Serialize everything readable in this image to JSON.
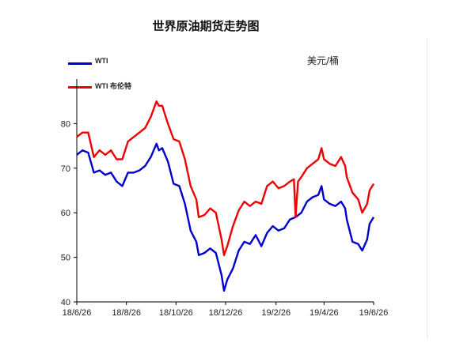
{
  "chart_data": {
    "type": "line",
    "title": "世界原油期货走势图",
    "unit": "美元/桶",
    "xlabel": "",
    "ylabel": "",
    "x_ticks": [
      "18/6/26",
      "18/8/26",
      "18/10/26",
      "18/12/26",
      "19/2/26",
      "19/4/26",
      "19/6/26"
    ],
    "y_ticks": [
      40,
      50,
      60,
      70,
      80
    ],
    "ylim": [
      40,
      90
    ],
    "grid": false,
    "legend_position": "top-left",
    "series": [
      {
        "name": "WTI",
        "color": "#0000cc",
        "points": [
          [
            "18/6/26",
            73
          ],
          [
            "18/7/3",
            74
          ],
          [
            "18/7/10",
            73.5
          ],
          [
            "18/7/17",
            69
          ],
          [
            "18/7/24",
            69.5
          ],
          [
            "18/7/31",
            68.5
          ],
          [
            "18/8/7",
            69
          ],
          [
            "18/8/14",
            67
          ],
          [
            "18/8/21",
            66
          ],
          [
            "18/8/28",
            69
          ],
          [
            "18/9/4",
            69
          ],
          [
            "18/9/11",
            69.5
          ],
          [
            "18/9/18",
            70.5
          ],
          [
            "18/9/25",
            72.5
          ],
          [
            "18/10/2",
            75.5
          ],
          [
            "18/10/5",
            74
          ],
          [
            "18/10/9",
            74.5
          ],
          [
            "18/10/16",
            71.5
          ],
          [
            "18/10/23",
            66.5
          ],
          [
            "18/10/30",
            66
          ],
          [
            "18/11/6",
            62
          ],
          [
            "18/11/13",
            56
          ],
          [
            "18/11/20",
            53.5
          ],
          [
            "18/11/23",
            50.5
          ],
          [
            "18/11/30",
            51
          ],
          [
            "18/12/7",
            52
          ],
          [
            "18/12/14",
            51
          ],
          [
            "18/12/21",
            46
          ],
          [
            "18/12/24",
            42.5
          ],
          [
            "18/12/28",
            45
          ],
          [
            "19/1/4",
            47.5
          ],
          [
            "19/1/11",
            51.5
          ],
          [
            "19/1/18",
            53.5
          ],
          [
            "19/1/25",
            53
          ],
          [
            "19/2/1",
            55
          ],
          [
            "19/2/8",
            52.5
          ],
          [
            "19/2/15",
            55.5
          ],
          [
            "19/2/22",
            57
          ],
          [
            "19/3/1",
            56
          ],
          [
            "19/3/8",
            56.5
          ],
          [
            "19/3/15",
            58.5
          ],
          [
            "19/3/22",
            59
          ],
          [
            "19/3/29",
            60
          ],
          [
            "19/4/5",
            62.5
          ],
          [
            "19/4/12",
            63.5
          ],
          [
            "19/4/19",
            64
          ],
          [
            "19/4/23",
            66
          ],
          [
            "19/4/26",
            63
          ],
          [
            "19/5/3",
            62
          ],
          [
            "19/5/10",
            61.5
          ],
          [
            "19/5/17",
            62.5
          ],
          [
            "19/5/22",
            61
          ],
          [
            "19/5/24",
            58.5
          ],
          [
            "19/5/31",
            53.5
          ],
          [
            "19/6/7",
            53
          ],
          [
            "19/6/12",
            51.5
          ],
          [
            "19/6/18",
            54
          ],
          [
            "19/6/21",
            57.5
          ],
          [
            "19/6/26",
            59
          ]
        ]
      },
      {
        "name": "WTI 布伦特",
        "color": "#ee0000",
        "points": [
          [
            "18/6/26",
            77
          ],
          [
            "18/7/3",
            78
          ],
          [
            "18/7/10",
            78
          ],
          [
            "18/7/17",
            72.5
          ],
          [
            "18/7/24",
            74
          ],
          [
            "18/7/31",
            73
          ],
          [
            "18/8/7",
            74
          ],
          [
            "18/8/14",
            72
          ],
          [
            "18/8/21",
            72
          ],
          [
            "18/8/28",
            76
          ],
          [
            "18/9/4",
            77
          ],
          [
            "18/9/11",
            78
          ],
          [
            "18/9/18",
            79
          ],
          [
            "18/9/25",
            81.5
          ],
          [
            "18/10/2",
            85
          ],
          [
            "18/10/5",
            84
          ],
          [
            "18/10/9",
            84
          ],
          [
            "18/10/16",
            80
          ],
          [
            "18/10/23",
            76.5
          ],
          [
            "18/10/30",
            76
          ],
          [
            "18/11/6",
            72
          ],
          [
            "18/11/13",
            66
          ],
          [
            "18/11/20",
            63
          ],
          [
            "18/11/23",
            59
          ],
          [
            "18/11/30",
            59.5
          ],
          [
            "18/12/7",
            61
          ],
          [
            "18/12/14",
            60
          ],
          [
            "18/12/21",
            54
          ],
          [
            "18/12/24",
            50.5
          ],
          [
            "18/12/28",
            52.5
          ],
          [
            "19/1/4",
            57
          ],
          [
            "19/1/11",
            60.5
          ],
          [
            "19/1/18",
            62.5
          ],
          [
            "19/1/25",
            61.5
          ],
          [
            "19/2/1",
            62.5
          ],
          [
            "19/2/8",
            62
          ],
          [
            "19/2/15",
            66
          ],
          [
            "19/2/22",
            67
          ],
          [
            "19/3/1",
            65.5
          ],
          [
            "19/3/8",
            66
          ],
          [
            "19/3/15",
            67
          ],
          [
            "19/3/20",
            67.5
          ],
          [
            "19/3/22",
            59
          ],
          [
            "19/3/25",
            67
          ],
          [
            "19/3/29",
            68
          ],
          [
            "19/4/5",
            70
          ],
          [
            "19/4/12",
            71
          ],
          [
            "19/4/19",
            72
          ],
          [
            "19/4/23",
            74.5
          ],
          [
            "19/4/26",
            72
          ],
          [
            "19/5/3",
            71
          ],
          [
            "19/5/10",
            70.5
          ],
          [
            "19/5/17",
            72.5
          ],
          [
            "19/5/22",
            70.5
          ],
          [
            "19/5/24",
            68
          ],
          [
            "19/5/31",
            64.5
          ],
          [
            "19/6/7",
            63
          ],
          [
            "19/6/12",
            60
          ],
          [
            "19/6/18",
            62
          ],
          [
            "19/6/21",
            65
          ],
          [
            "19/6/26",
            66.5
          ]
        ]
      }
    ]
  }
}
